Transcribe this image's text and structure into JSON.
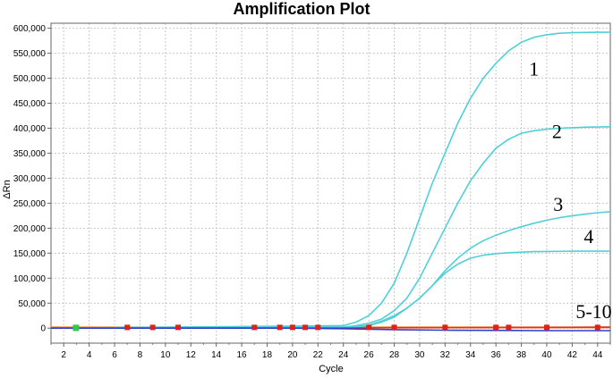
{
  "chart_data": {
    "type": "line",
    "title": "Amplification Plot",
    "xlabel": "Cycle",
    "ylabel": "ΔRn",
    "xlim": [
      1,
      45
    ],
    "ylim": [
      -30000,
      610000
    ],
    "grid": true,
    "x_ticks": [
      2,
      4,
      6,
      8,
      10,
      12,
      14,
      16,
      18,
      20,
      22,
      24,
      26,
      28,
      30,
      32,
      34,
      36,
      38,
      40,
      42,
      44
    ],
    "y_ticks": [
      0,
      50000,
      100000,
      150000,
      200000,
      250000,
      300000,
      350000,
      400000,
      450000,
      500000,
      550000,
      600000
    ],
    "y_tick_labels": [
      "0",
      "50,000",
      "100,000",
      "150,000",
      "200,000",
      "250,000",
      "300,000",
      "350,000",
      "400,000",
      "450,000",
      "500,000",
      "550,000",
      "600,000"
    ],
    "colors": {
      "amplification": "#4fd0d8",
      "baseline_red": "#e0301e",
      "baseline_blue": "#2d3fd0",
      "threshold_orange": "#f07a10",
      "marker_red": "#e0201a",
      "marker_green": "#2ecc40"
    },
    "series": [
      {
        "label": "1",
        "color": "#4fd0d8",
        "x": [
          1,
          24,
          25,
          26,
          27,
          28,
          29,
          30,
          31,
          32,
          33,
          34,
          35,
          36,
          37,
          38,
          39,
          40,
          41,
          42,
          43,
          44,
          45
        ],
        "y": [
          0,
          5000,
          12000,
          25000,
          50000,
          90000,
          150000,
          220000,
          290000,
          350000,
          410000,
          460000,
          500000,
          530000,
          555000,
          572000,
          582000,
          587000,
          590000,
          591000,
          591500,
          592000,
          592000
        ]
      },
      {
        "label": "2",
        "color": "#4fd0d8",
        "x": [
          1,
          24,
          25,
          26,
          27,
          28,
          29,
          30,
          31,
          32,
          33,
          34,
          35,
          36,
          37,
          38,
          39,
          40,
          41,
          42,
          43,
          44,
          45
        ],
        "y": [
          0,
          2000,
          5000,
          10000,
          18000,
          35000,
          60000,
          100000,
          150000,
          200000,
          250000,
          295000,
          330000,
          360000,
          378000,
          390000,
          395000,
          398000,
          400000,
          401000,
          402000,
          402500,
          403000
        ]
      },
      {
        "label": "3",
        "color": "#4fd0d8",
        "x": [
          1,
          24,
          26,
          27,
          28,
          29,
          30,
          31,
          32,
          33,
          34,
          35,
          36,
          37,
          38,
          39,
          40,
          41,
          42,
          43,
          44,
          45
        ],
        "y": [
          0,
          1000,
          6000,
          14000,
          25000,
          40000,
          60000,
          85000,
          115000,
          140000,
          160000,
          175000,
          186000,
          195000,
          203000,
          210000,
          216000,
          221000,
          225000,
          228000,
          231000,
          233000
        ]
      },
      {
        "label": "4",
        "color": "#4fd0d8",
        "x": [
          1,
          24,
          26,
          27,
          28,
          29,
          30,
          31,
          32,
          33,
          34,
          35,
          36,
          37,
          38,
          39,
          40,
          42,
          45
        ],
        "y": [
          0,
          1000,
          5000,
          12000,
          22000,
          40000,
          60000,
          85000,
          110000,
          128000,
          140000,
          146000,
          149000,
          151000,
          152000,
          153000,
          153500,
          154000,
          154000
        ]
      },
      {
        "label": "5-10",
        "color": "#e0301e",
        "x": [
          1,
          10,
          20,
          30,
          40,
          45
        ],
        "y": [
          0,
          0,
          0,
          1000,
          1500,
          2000
        ]
      },
      {
        "label": "5-10",
        "color": "#2d3fd0",
        "x": [
          1,
          20,
          24,
          28,
          32,
          36,
          40,
          45
        ],
        "y": [
          0,
          0,
          -1000,
          -3000,
          -4000,
          -4500,
          -5000,
          -5000
        ]
      }
    ],
    "threshold": {
      "color": "#f07a10",
      "y": 1500
    },
    "cycle_markers": {
      "red": [
        7,
        9,
        11,
        17,
        19,
        20,
        21,
        22,
        26,
        28,
        32,
        36,
        37,
        40,
        44
      ],
      "green": [
        3
      ]
    },
    "curve_labels": [
      {
        "text": "1",
        "x": 39.0,
        "y": 505000
      },
      {
        "text": "2",
        "x": 40.8,
        "y": 380000
      },
      {
        "text": "3",
        "x": 40.9,
        "y": 235000
      },
      {
        "text": "4",
        "x": 43.3,
        "y": 170000
      },
      {
        "text": "5-10",
        "x": 43.7,
        "y": 20000
      }
    ]
  }
}
